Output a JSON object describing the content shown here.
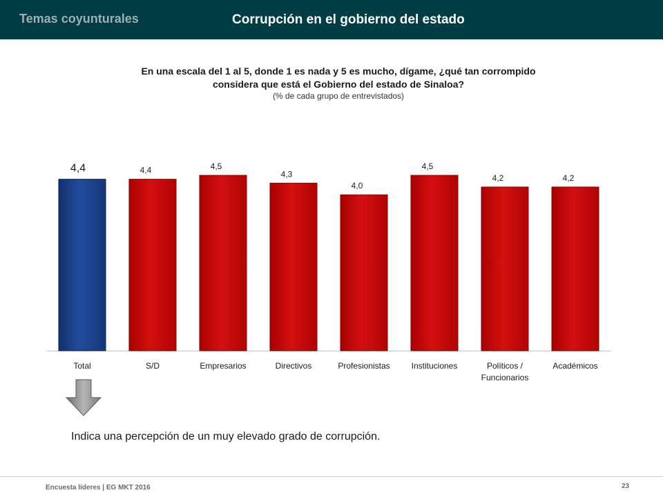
{
  "header": {
    "section": "Temas coyunturales",
    "title": "Corrupción  en el gobierno del estado"
  },
  "question": {
    "line1": "En una escala del 1 al 5, donde 1 es nada y 5 es mucho, dígame, ¿qué tan corrompido",
    "line2": "considera que está el Gobierno del estado de Sinaloa?",
    "note": "(% de cada grupo de entrevistados)"
  },
  "chart_data": {
    "type": "bar",
    "categories": [
      "Total",
      "S/D",
      "Empresarios",
      "Directivos",
      "Profesionistas",
      "Instituciones",
      "Políticos / Funcionarios",
      "Académicos"
    ],
    "values": [
      4.4,
      4.4,
      4.5,
      4.3,
      4.0,
      4.5,
      4.2,
      4.2
    ],
    "value_labels": [
      "4,4",
      "4,4",
      "4,5",
      "4,3",
      "4,0",
      "4,5",
      "4,2",
      "4,2"
    ],
    "highlight_index": 0,
    "colors": {
      "highlight": "#1c3f8f",
      "default": "#cc0c0c"
    },
    "ylim": [
      0,
      4.5
    ],
    "grid": false,
    "title": "",
    "xlabel": "",
    "ylabel": ""
  },
  "conclusion": "Indica una percepción de un muy elevado grado de corrupción.",
  "footer": {
    "left": "Encuesta líderes | EG MKT 2016",
    "page": "23"
  },
  "icons": {
    "arrow": "down-arrow-icon"
  }
}
